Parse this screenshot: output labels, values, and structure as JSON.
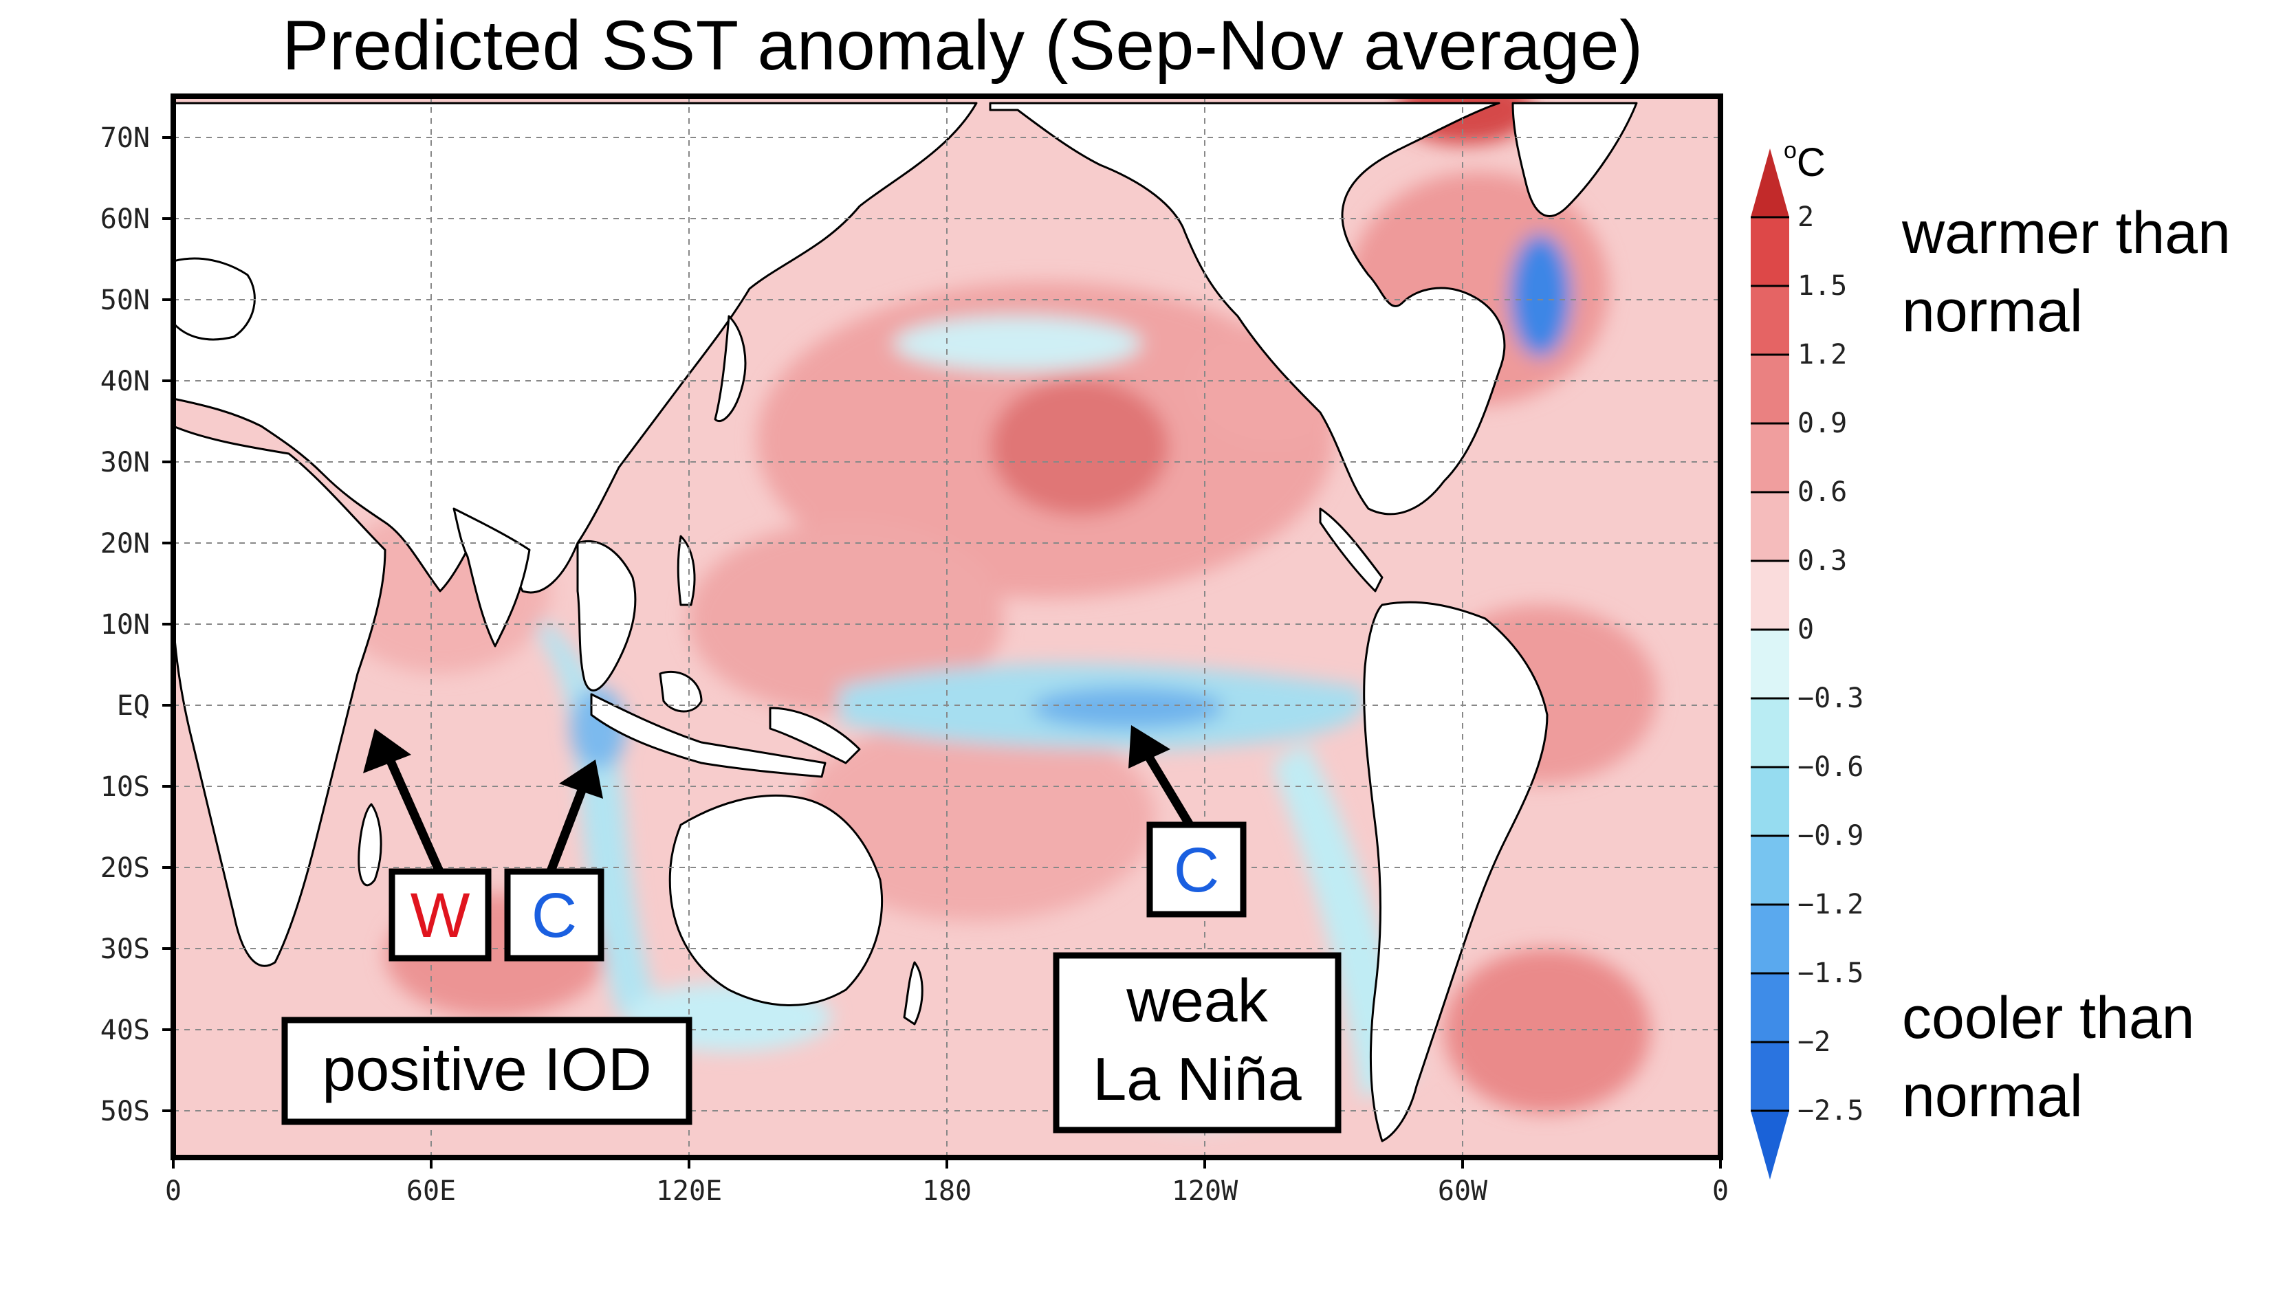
{
  "title": "Predicted SST anomaly (Sep-Nov average)",
  "map": {
    "lat_labels": [
      "70N",
      "60N",
      "50N",
      "40N",
      "30N",
      "20N",
      "10N",
      "EQ",
      "10S",
      "20S",
      "30S",
      "40S",
      "50S"
    ],
    "lon_labels": [
      "0",
      "60E",
      "120E",
      "180",
      "120W",
      "60W",
      "0"
    ],
    "colors": {
      "land": "#ffffff",
      "warm_weak": "#f9d6d6",
      "warm_mid": "#f2a8a8",
      "warm_strong": "#e06a6a",
      "warm_max": "#cc3b3b",
      "cool_weak": "#d6f1f5",
      "cool_mid": "#a8dff0",
      "cool_strong": "#6fb2ec",
      "cool_max": "#2f78e0"
    }
  },
  "annotations": {
    "w_marker": "W",
    "c_indian": "C",
    "c_pacific": "C",
    "iod": "positive IOD",
    "lanina_line1": "weak",
    "lanina_line2": "La Niña",
    "colors": {
      "warm_text": "#e0141e",
      "cool_text": "#1a5fe0"
    }
  },
  "colorbar": {
    "unit_degree": "o",
    "unit_letter": "C",
    "ticks": [
      "2",
      "1.5",
      "1.2",
      "0.9",
      "0.6",
      "0.3",
      "0",
      "−0.3",
      "−0.6",
      "−0.9",
      "−1.2",
      "−1.5",
      "−2",
      "−2.5"
    ],
    "colors": [
      "#c22a2a",
      "#dd4848",
      "#e56464",
      "#ea8181",
      "#f09e9e",
      "#f5bcbc",
      "#fadcdc",
      "#dcf6f8",
      "#b9ecf3",
      "#96dcf0",
      "#77c4f0",
      "#5aa9ee",
      "#3e8ce8",
      "#2a74e0",
      "#1a62d8"
    ]
  },
  "legend_text": {
    "warmer_line1": "warmer than",
    "warmer_line2": "normal",
    "cooler_line1": "cooler than",
    "cooler_line2": "normal"
  }
}
